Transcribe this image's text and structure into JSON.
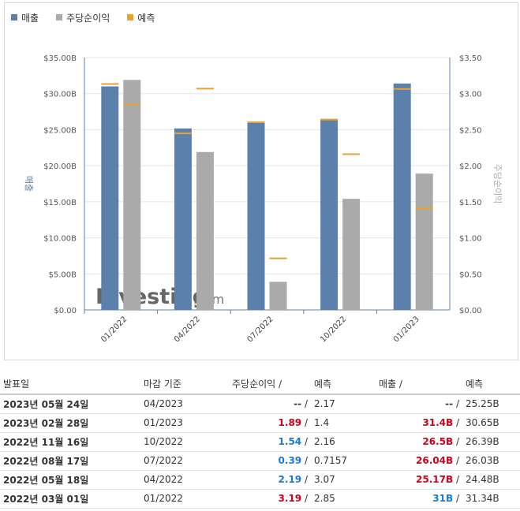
{
  "legend": [
    {
      "label": "매출",
      "color": "#5b80ab"
    },
    {
      "label": "주당순이익",
      "color": "#aaaaaa"
    },
    {
      "label": "예측",
      "color": "#e8a22d"
    }
  ],
  "chart_data": {
    "type": "bar",
    "categories": [
      "01/2022",
      "04/2022",
      "07/2022",
      "10/2022",
      "01/2023"
    ],
    "series": [
      {
        "name": "매출",
        "axis": "left",
        "color": "#5b80ab",
        "values": [
          31.0,
          25.17,
          26.04,
          26.5,
          31.4
        ]
      },
      {
        "name": "주당순이익",
        "axis": "right",
        "color": "#aaaaaa",
        "values": [
          3.19,
          2.19,
          0.39,
          1.54,
          1.89
        ]
      }
    ],
    "forecasts": {
      "name": "예측",
      "color": "#e8a22d",
      "revenue": [
        31.34,
        24.48,
        26.03,
        26.39,
        30.65
      ],
      "eps": [
        2.85,
        3.07,
        0.7157,
        2.16,
        1.4
      ]
    },
    "left_axis": {
      "label": "매출",
      "ylim": [
        0,
        35
      ],
      "ticks": [
        "$0.00",
        "$5.00B",
        "$10.00B",
        "$15.00B",
        "$20.00B",
        "$25.00B",
        "$30.00B",
        "$35.00B"
      ]
    },
    "right_axis": {
      "label": "주당순이익",
      "ylim": [
        0,
        3.5
      ],
      "ticks": [
        "$0.00",
        "$0.50",
        "$1.00",
        "$1.50",
        "$2.00",
        "$2.50",
        "$3.00",
        "$3.50"
      ]
    },
    "grid": true,
    "watermark": {
      "brand": "Investing",
      "suffix": ".com"
    }
  },
  "table": {
    "headers": {
      "date": "발표일",
      "period": "마감 기준",
      "eps": "주당순이익",
      "eps_sep": "/",
      "eps_forecast": "예측",
      "revenue": "매출",
      "revenue_sep": "/",
      "revenue_forecast": "예측"
    },
    "rows": [
      {
        "date": "2023년 05월 24일",
        "period": "04/2023",
        "eps": "--",
        "eps_color": "neutral",
        "eps_forecast": "2.17",
        "revenue": "--",
        "revenue_color": "neutral",
        "revenue_forecast": "25.25B"
      },
      {
        "date": "2023년 02월 28일",
        "period": "01/2023",
        "eps": "1.89",
        "eps_color": "red",
        "eps_forecast": "1.4",
        "revenue": "31.4B",
        "revenue_color": "red",
        "revenue_forecast": "30.65B"
      },
      {
        "date": "2022년 11월 16일",
        "period": "10/2022",
        "eps": "1.54",
        "eps_color": "blue",
        "eps_forecast": "2.16",
        "revenue": "26.5B",
        "revenue_color": "red",
        "revenue_forecast": "26.39B"
      },
      {
        "date": "2022년 08월 17일",
        "period": "07/2022",
        "eps": "0.39",
        "eps_color": "blue",
        "eps_forecast": "0.7157",
        "revenue": "26.04B",
        "revenue_color": "red",
        "revenue_forecast": "26.03B"
      },
      {
        "date": "2022년 05월 18일",
        "period": "04/2022",
        "eps": "2.19",
        "eps_color": "blue",
        "eps_forecast": "3.07",
        "revenue": "25.17B",
        "revenue_color": "red",
        "revenue_forecast": "24.48B"
      },
      {
        "date": "2022년 03월 01일",
        "period": "01/2022",
        "eps": "3.19",
        "eps_color": "red",
        "eps_forecast": "2.85",
        "revenue": "31B",
        "revenue_color": "blue",
        "revenue_forecast": "31.34B"
      }
    ]
  }
}
